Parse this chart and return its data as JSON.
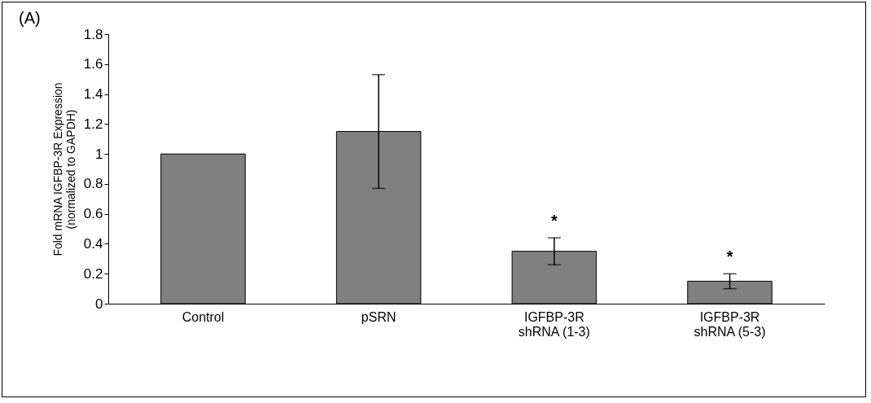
{
  "chart_data": {
    "type": "bar",
    "title": "(A)",
    "ylabel": "Fold mRNA IGFBP-3R Expression\n(normalized to GAPDH)",
    "categories": [
      "Control",
      "pSRN",
      "IGFBP-3R\nshRNA (1-3)",
      "IGFBP-3R\nshRNA (5-3)"
    ],
    "values": [
      1.0,
      1.15,
      0.35,
      0.15
    ],
    "errors": [
      null,
      0.38,
      0.09,
      0.05
    ],
    "color": "#808080",
    "ylim": [
      0,
      1.8
    ],
    "yticks": [
      0,
      0.2,
      0.4,
      0.6,
      0.8,
      1,
      1.2,
      1.4,
      1.6,
      1.8
    ],
    "grid": false,
    "annotations": [
      "*",
      "*"
    ]
  }
}
